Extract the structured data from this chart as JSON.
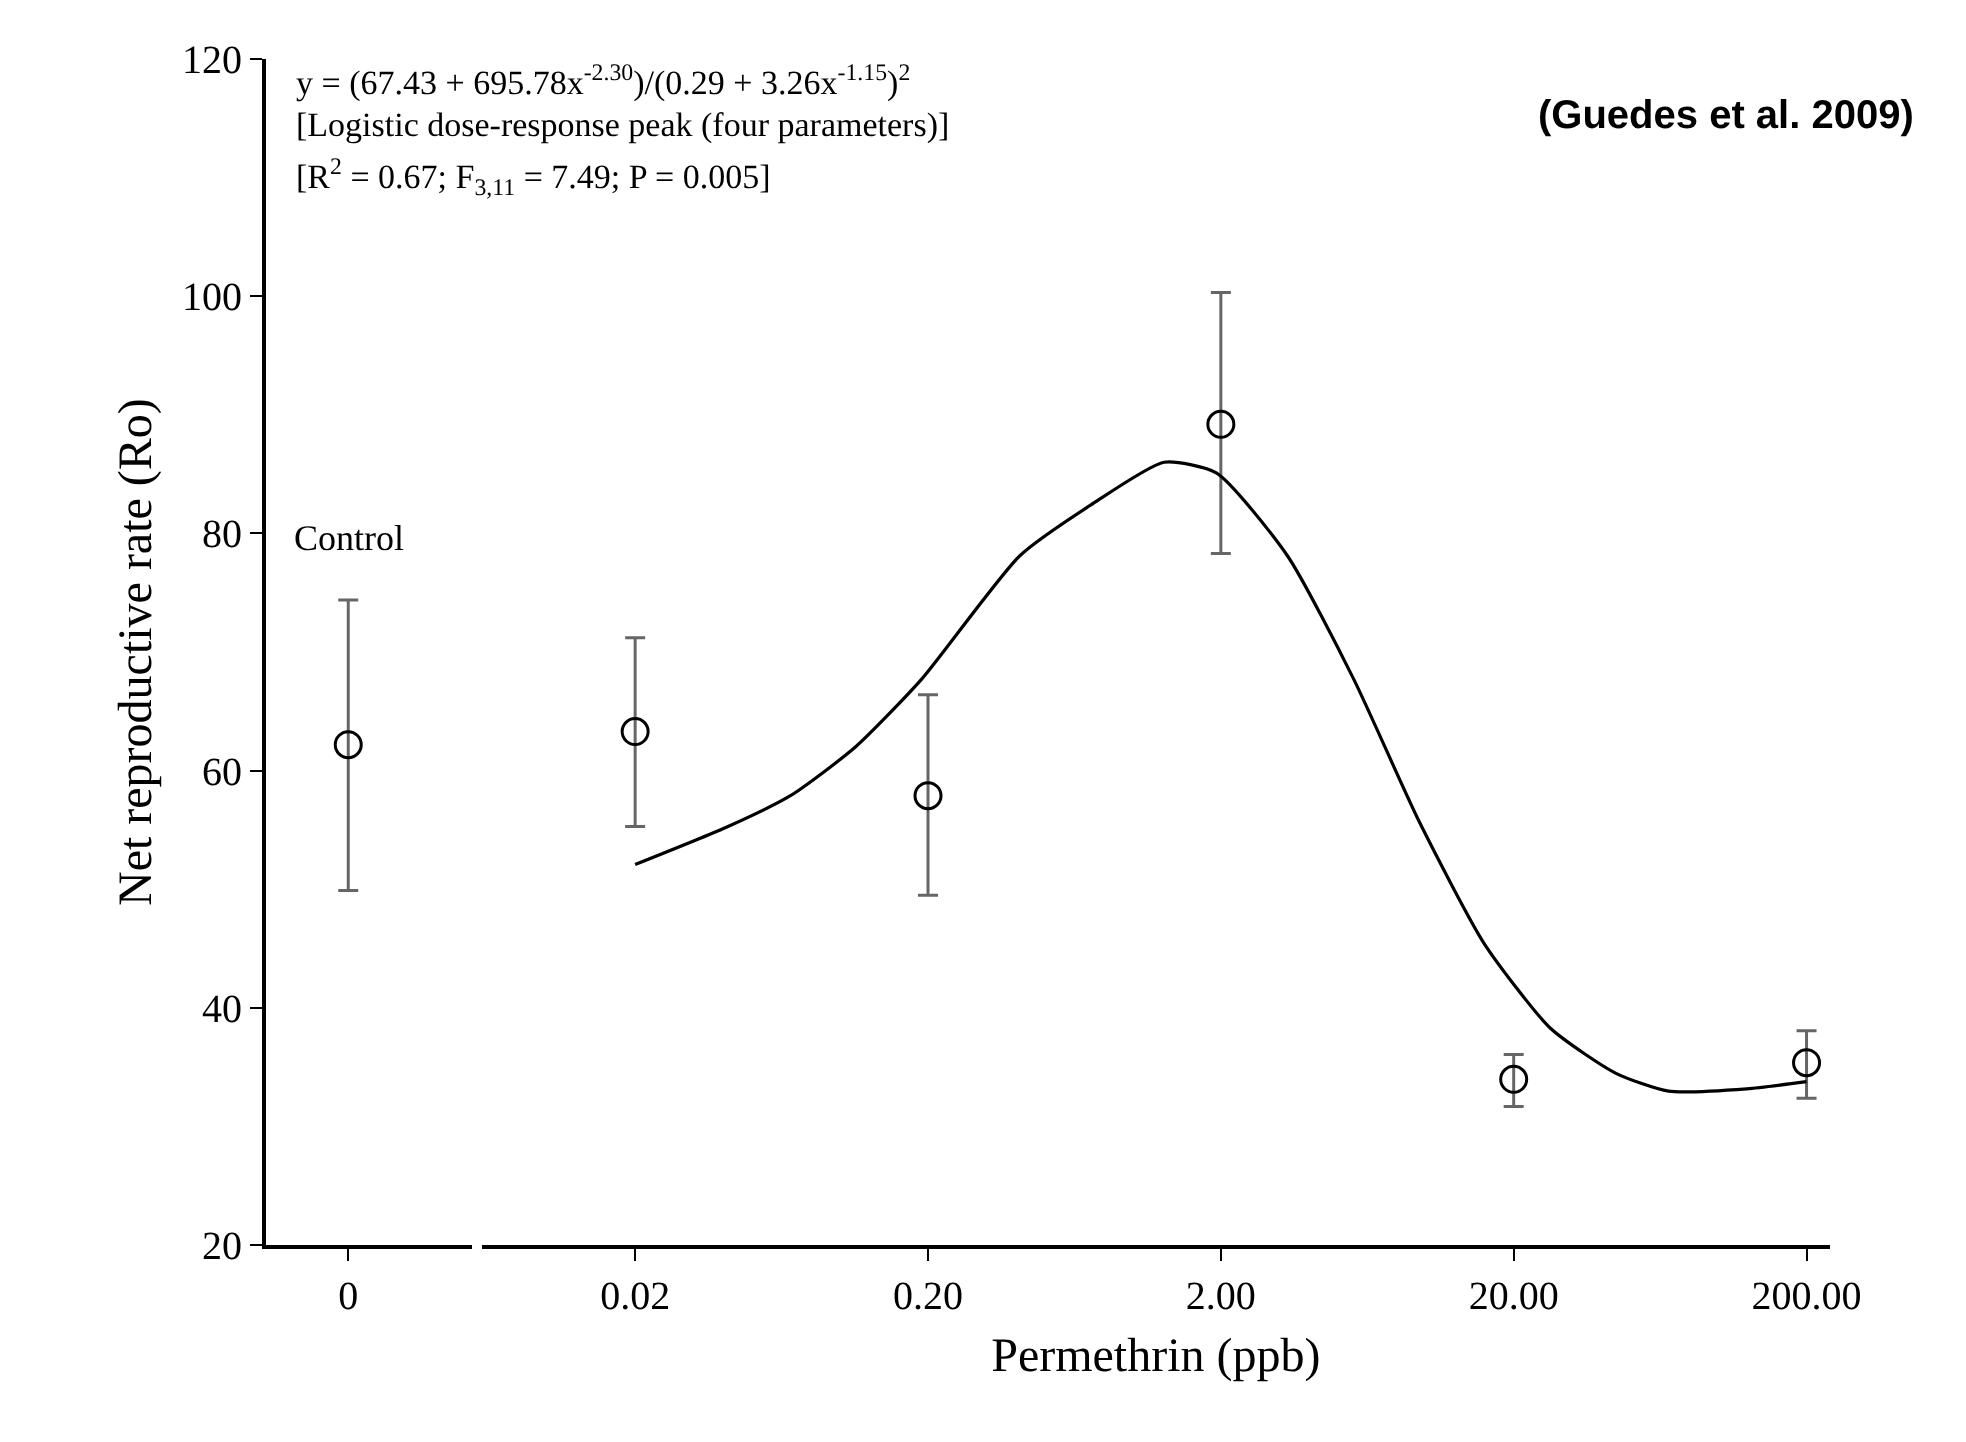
{
  "chart_data": [
    {
      "type": "scatter",
      "categories": [
        "0"
      ],
      "ylabel": "Net reproductive rate (Ro)",
      "ylim": [
        20,
        120
      ],
      "yticks": [
        20,
        40,
        60,
        80,
        100,
        120
      ],
      "marker": "circle",
      "series": [
        {
          "color": "#000000",
          "values": [
            62.2
          ],
          "errors": [
            [
              49.9,
              74.4
            ]
          ]
        }
      ],
      "annotations": [
        "Control"
      ]
    },
    {
      "type": "scatter",
      "xlabel": "Permethrin (ppb)",
      "log": "x",
      "xlim": [
        0.006,
        240
      ],
      "xticks": [
        {
          "value": 0.02,
          "label": "0.02"
        },
        {
          "value": 0.2,
          "label": "0.20"
        },
        {
          "value": 2,
          "label": "2.00"
        },
        {
          "value": 20,
          "label": "20.00"
        },
        {
          "value": 200,
          "label": "200.00"
        }
      ],
      "ylim": [
        20,
        120
      ],
      "tick_labels": "x",
      "marker": "circle",
      "series": [
        {
          "type": "scatter",
          "color": "#000000",
          "x": [
            0.02,
            0.2,
            2,
            20,
            200
          ],
          "values": [
            63.3,
            57.9,
            89.2,
            34.0,
            35.4
          ],
          "errors": [
            [
              55.3,
              71.2
            ],
            [
              49.5,
              66.4
            ],
            [
              78.3,
              100.3
            ],
            [
              31.7,
              36.1
            ],
            [
              32.4,
              38.1
            ]
          ]
        },
        {
          "type": "line",
          "color": "#000000",
          "marker": "none",
          "x": [
            0.02,
            0.0406,
            0.0678,
            0.113,
            0.19,
            0.411,
            0.72,
            1.28,
            1.93,
            3.38,
            5.69,
            9.52,
            15.9,
            26.7,
            44.7,
            67.5,
            125,
            200
          ],
          "values": [
            52.1,
            55.2,
            57.9,
            62.0,
            67.7,
            78.1,
            82.4,
            86.0,
            85.1,
            78.1,
            67.7,
            55.7,
            45.4,
            38.3,
            34.5,
            33.0,
            33.2,
            33.8
          ]
        }
      ],
      "annotations": [
        "y = (67.43 + 695.78x$^{-2.30}$)/(0.29 + 3.26x$^{-1.15}$)$^{2}$",
        "[Logistic dose-response peak (four parameters)]",
        "[R$^{2}$ = 0.67; F$_{3,11}$ = 7.49; P = 0.005]",
        "(Guedes et al. 2009)"
      ]
    }
  ]
}
